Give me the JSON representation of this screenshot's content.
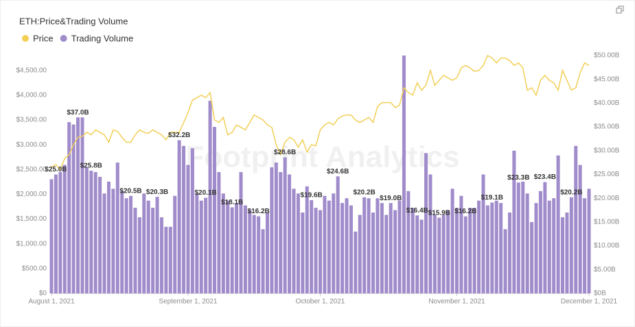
{
  "chart_data": {
    "type": "bar_line",
    "title": "ETH:Price&Trading Volume",
    "watermark": "Footprint Analytics",
    "x": [
      "2021-08-01",
      "2021-08-02",
      "2021-08-03",
      "2021-08-04",
      "2021-08-05",
      "2021-08-06",
      "2021-08-07",
      "2021-08-08",
      "2021-08-09",
      "2021-08-10",
      "2021-08-11",
      "2021-08-12",
      "2021-08-13",
      "2021-08-14",
      "2021-08-15",
      "2021-08-16",
      "2021-08-17",
      "2021-08-18",
      "2021-08-19",
      "2021-08-20",
      "2021-08-21",
      "2021-08-22",
      "2021-08-23",
      "2021-08-24",
      "2021-08-25",
      "2021-08-26",
      "2021-08-27",
      "2021-08-28",
      "2021-08-29",
      "2021-08-30",
      "2021-08-31",
      "2021-09-01",
      "2021-09-02",
      "2021-09-03",
      "2021-09-04",
      "2021-09-05",
      "2021-09-06",
      "2021-09-07",
      "2021-09-08",
      "2021-09-09",
      "2021-09-10",
      "2021-09-11",
      "2021-09-12",
      "2021-09-13",
      "2021-09-14",
      "2021-09-15",
      "2021-09-16",
      "2021-09-17",
      "2021-09-18",
      "2021-09-19",
      "2021-09-20",
      "2021-09-21",
      "2021-09-22",
      "2021-09-23",
      "2021-09-24",
      "2021-09-25",
      "2021-09-26",
      "2021-09-27",
      "2021-09-28",
      "2021-09-29",
      "2021-09-30",
      "2021-10-01",
      "2021-10-02",
      "2021-10-03",
      "2021-10-04",
      "2021-10-05",
      "2021-10-06",
      "2021-10-07",
      "2021-10-08",
      "2021-10-09",
      "2021-10-10",
      "2021-10-11",
      "2021-10-12",
      "2021-10-13",
      "2021-10-14",
      "2021-10-15",
      "2021-10-16",
      "2021-10-17",
      "2021-10-18",
      "2021-10-19",
      "2021-10-20",
      "2021-10-21",
      "2021-10-22",
      "2021-10-23",
      "2021-10-24",
      "2021-10-25",
      "2021-10-26",
      "2021-10-27",
      "2021-10-28",
      "2021-10-29",
      "2021-10-30",
      "2021-10-31",
      "2021-11-01",
      "2021-11-02",
      "2021-11-03",
      "2021-11-04",
      "2021-11-05",
      "2021-11-06",
      "2021-11-07",
      "2021-11-08",
      "2021-11-09",
      "2021-11-10",
      "2021-11-11",
      "2021-11-12",
      "2021-11-13",
      "2021-11-14",
      "2021-11-15",
      "2021-11-16",
      "2021-11-17",
      "2021-11-18",
      "2021-11-19",
      "2021-11-20",
      "2021-11-21",
      "2021-11-22",
      "2021-11-23",
      "2021-11-24",
      "2021-11-25",
      "2021-11-26",
      "2021-11-27",
      "2021-11-28",
      "2021-11-29",
      "2021-11-30",
      "2021-12-01"
    ],
    "xlim": [
      "2021-08-01",
      "2021-12-01"
    ],
    "xticks": [
      {
        "value": "2021-08-01",
        "label": "August 1, 2021"
      },
      {
        "value": "2021-09-01",
        "label": "September 1, 2021"
      },
      {
        "value": "2021-10-01",
        "label": "October 1, 2021"
      },
      {
        "value": "2021-11-01",
        "label": "November 1, 2021"
      },
      {
        "value": "2021-12-01",
        "label": "December 1, 2021"
      }
    ],
    "ylim": [
      0,
      4800
    ],
    "yticks": [
      {
        "value": 0,
        "label": "$0"
      },
      {
        "value": 500,
        "label": "$500.00"
      },
      {
        "value": 1000,
        "label": "$1,000.00"
      },
      {
        "value": 1500,
        "label": "$1,500.00"
      },
      {
        "value": 2000,
        "label": "$2,000.00"
      },
      {
        "value": 2500,
        "label": "$2,500.00"
      },
      {
        "value": 3000,
        "label": "$3,000.00"
      },
      {
        "value": 3500,
        "label": "$3,500.00"
      },
      {
        "value": 4000,
        "label": "$4,000.00"
      },
      {
        "value": 4500,
        "label": "$4,500.00"
      }
    ],
    "y2lim": [
      0,
      50
    ],
    "y2ticks": [
      {
        "value": 0,
        "label": "$0B"
      },
      {
        "value": 5,
        "label": "$5.00B"
      },
      {
        "value": 10,
        "label": "$10.00B"
      },
      {
        "value": 15,
        "label": "$15.00B"
      },
      {
        "value": 20,
        "label": "$20.00B"
      },
      {
        "value": 25,
        "label": "$25.00B"
      },
      {
        "value": 30,
        "label": "$30.00B"
      },
      {
        "value": 35,
        "label": "$35.00B"
      },
      {
        "value": 40,
        "label": "$40.00B"
      },
      {
        "value": 45,
        "label": "$45.00B"
      },
      {
        "value": 50,
        "label": "$50.00B"
      }
    ],
    "grid": false,
    "series": [
      {
        "name": "Price",
        "type": "line",
        "axis": "y",
        "color": "#f2cf56",
        "values": [
          2550,
          2600,
          2500,
          2720,
          2800,
          3000,
          3150,
          3170,
          3250,
          3200,
          3300,
          3250,
          3200,
          3050,
          3300,
          3270,
          3150,
          3050,
          3050,
          3200,
          3300,
          3250,
          3230,
          3300,
          3250,
          3200,
          3100,
          3250,
          3250,
          3250,
          3450,
          3650,
          3900,
          3950,
          4000,
          3950,
          4050,
          3500,
          3450,
          3550,
          3200,
          3250,
          3400,
          3350,
          3300,
          3450,
          3600,
          3550,
          3500,
          3400,
          3350,
          3000,
          2800,
          3050,
          3150,
          3100,
          2950,
          3100,
          2850,
          3000,
          2980,
          3300,
          3400,
          3450,
          3400,
          3520,
          3580,
          3600,
          3600,
          3500,
          3450,
          3500,
          3550,
          3450,
          3770,
          3850,
          3850,
          3850,
          3750,
          3800,
          4150,
          4050,
          4000,
          4250,
          4100,
          4200,
          4500,
          4200,
          4300,
          4400,
          4350,
          4300,
          4350,
          4550,
          4600,
          4550,
          4480,
          4500,
          4600,
          4800,
          4750,
          4650,
          4750,
          4750,
          4700,
          4600,
          4650,
          4550,
          4100,
          4150,
          4000,
          4300,
          4400,
          4300,
          4250,
          4100,
          4500,
          4300,
          4100,
          4150,
          4450,
          4650,
          4600
        ]
      },
      {
        "name": "Trading Volume",
        "type": "bar",
        "axis": "y2",
        "color": "#a08bcb",
        "values": [
          24,
          25.0,
          25.5,
          27,
          36,
          35.5,
          37.0,
          37,
          26.5,
          25.8,
          25.5,
          24.5,
          21,
          23.5,
          22,
          27.5,
          21.5,
          20,
          20.5,
          18,
          16,
          21,
          19.5,
          18,
          20.3,
          16,
          14,
          14,
          20.5,
          32.2,
          31,
          27,
          30.5,
          21,
          19.5,
          20.1,
          40.5,
          35,
          25.5,
          21,
          19.5,
          18.1,
          19,
          25.5,
          18.5,
          17.5,
          16.5,
          16.2,
          13.5,
          17,
          26.5,
          27.5,
          25.5,
          28.6,
          25,
          22,
          21,
          17,
          22.5,
          19.6,
          18,
          17.5,
          20.5,
          19.5,
          21,
          24.6,
          19,
          20,
          18.5,
          13,
          16.5,
          20.2,
          20,
          17,
          20,
          19,
          16.5,
          19.0,
          17.5,
          19.5,
          50,
          21.5,
          18,
          16.4,
          15.5,
          29.5,
          25,
          16.5,
          15.9,
          16.5,
          17.5,
          22,
          18,
          20.5,
          16.2,
          18,
          18,
          19.5,
          25,
          18.5,
          19.1,
          19.5,
          19,
          13.5,
          17,
          30,
          23.3,
          23.5,
          21,
          15,
          19,
          21.5,
          23.4,
          19.5,
          20,
          29,
          16,
          17,
          20.2,
          31,
          27,
          20,
          22
        ],
        "value_labels": [
          null,
          "$25.0B",
          null,
          null,
          null,
          null,
          "$37.0B",
          null,
          null,
          "$25.8B",
          null,
          null,
          null,
          null,
          null,
          null,
          null,
          null,
          "$20.5B",
          null,
          null,
          null,
          null,
          null,
          "$20.3B",
          null,
          null,
          null,
          null,
          "$32.2B",
          null,
          null,
          null,
          null,
          null,
          "$20.1B",
          null,
          null,
          null,
          null,
          null,
          "$18.1B",
          null,
          null,
          null,
          null,
          null,
          "$16.2B",
          null,
          null,
          null,
          null,
          null,
          "$28.6B",
          null,
          null,
          null,
          null,
          null,
          "$19.6B",
          null,
          null,
          null,
          null,
          null,
          "$24.6B",
          null,
          null,
          null,
          null,
          null,
          "$20.2B",
          null,
          null,
          null,
          null,
          null,
          "$19.0B",
          null,
          null,
          null,
          null,
          null,
          "$16.4B",
          null,
          null,
          null,
          null,
          "$15.9B",
          null,
          null,
          null,
          null,
          null,
          "$16.2B",
          null,
          null,
          null,
          null,
          null,
          "$19.1B",
          null,
          null,
          null,
          null,
          null,
          "$23.3B",
          null,
          null,
          null,
          null,
          null,
          "$23.4B",
          null,
          null,
          null,
          null,
          null,
          "$20.2B",
          null,
          null,
          null,
          null
        ]
      }
    ]
  }
}
